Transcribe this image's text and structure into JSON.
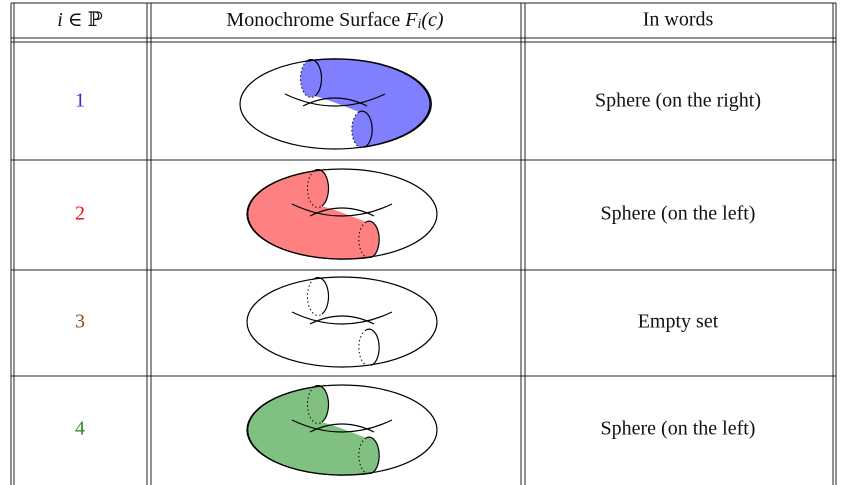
{
  "header": {
    "index": {
      "var": "i",
      "rest": "∈ ℙ"
    },
    "surface": {
      "text": "Monochrome Surface",
      "var": "F",
      "sub": "i",
      "arg": "(c)"
    },
    "words": "In words"
  },
  "rows": [
    {
      "index": "1",
      "color": "#2b2bd9",
      "words": "Sphere (on the right)"
    },
    {
      "index": "2",
      "color": "#ee1111",
      "words": "Sphere (on the left)"
    },
    {
      "index": "3",
      "color": "#8a4b1e",
      "words": "Empty set"
    },
    {
      "index": "4",
      "color": "#2e8b2e",
      "words": "Sphere (on the left)"
    }
  ]
}
